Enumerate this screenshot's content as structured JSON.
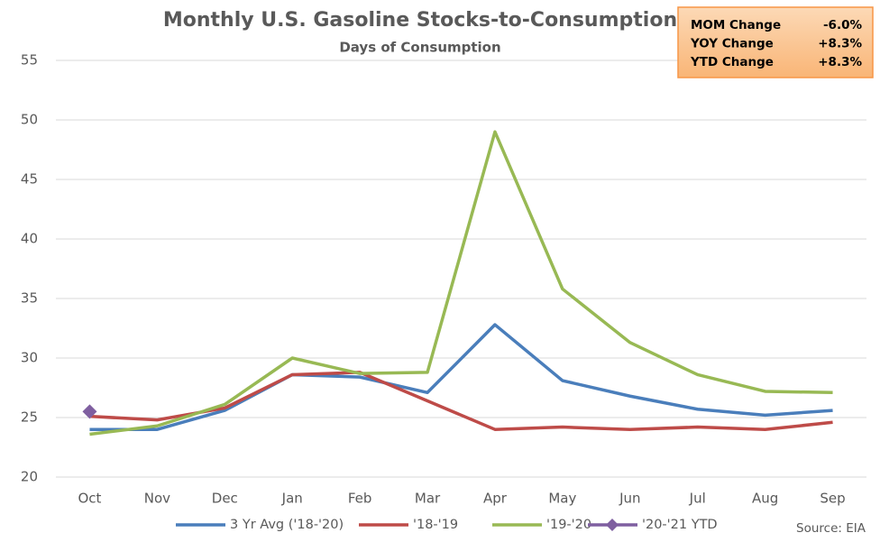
{
  "chart_data": {
    "type": "line",
    "title": "Monthly U.S. Gasoline Stocks-to-Consumption",
    "subtitle": "Days of Consumption",
    "categories": [
      "Oct",
      "Nov",
      "Dec",
      "Jan",
      "Feb",
      "Mar",
      "Apr",
      "May",
      "Jun",
      "Jul",
      "Aug",
      "Sep"
    ],
    "series": [
      {
        "name": "3 Yr Avg ('18-'20)",
        "color": "#4a7ebb",
        "values": [
          24.0,
          24.0,
          25.6,
          28.6,
          28.4,
          27.1,
          32.8,
          28.1,
          26.8,
          25.7,
          25.2,
          25.6
        ]
      },
      {
        "name": "'18-'19",
        "color": "#be4b48",
        "values": [
          25.1,
          24.8,
          25.8,
          28.6,
          28.8,
          26.4,
          24.0,
          24.2,
          24.0,
          24.2,
          24.0,
          24.6
        ]
      },
      {
        "name": "'19-'20",
        "color": "#98b954",
        "values": [
          23.6,
          24.3,
          26.1,
          30.0,
          28.7,
          28.8,
          49.0,
          35.8,
          31.3,
          28.6,
          27.2,
          27.1
        ]
      },
      {
        "name": "'20-'21 YTD",
        "color": "#7f5fa0",
        "marker": "diamond",
        "values": [
          25.5,
          null,
          null,
          null,
          null,
          null,
          null,
          null,
          null,
          null,
          null,
          null
        ]
      }
    ],
    "ylim": [
      20,
      55
    ],
    "yticks": [
      20,
      25,
      30,
      35,
      40,
      45,
      50,
      55
    ],
    "grid": true,
    "legend": "bottom",
    "info_box": [
      {
        "label": "MOM Change",
        "value": "-6.0%"
      },
      {
        "label": "YOY Change",
        "value": "+8.3%"
      },
      {
        "label": "YTD Change",
        "value": "+8.3%"
      }
    ],
    "source": "Source: EIA"
  }
}
